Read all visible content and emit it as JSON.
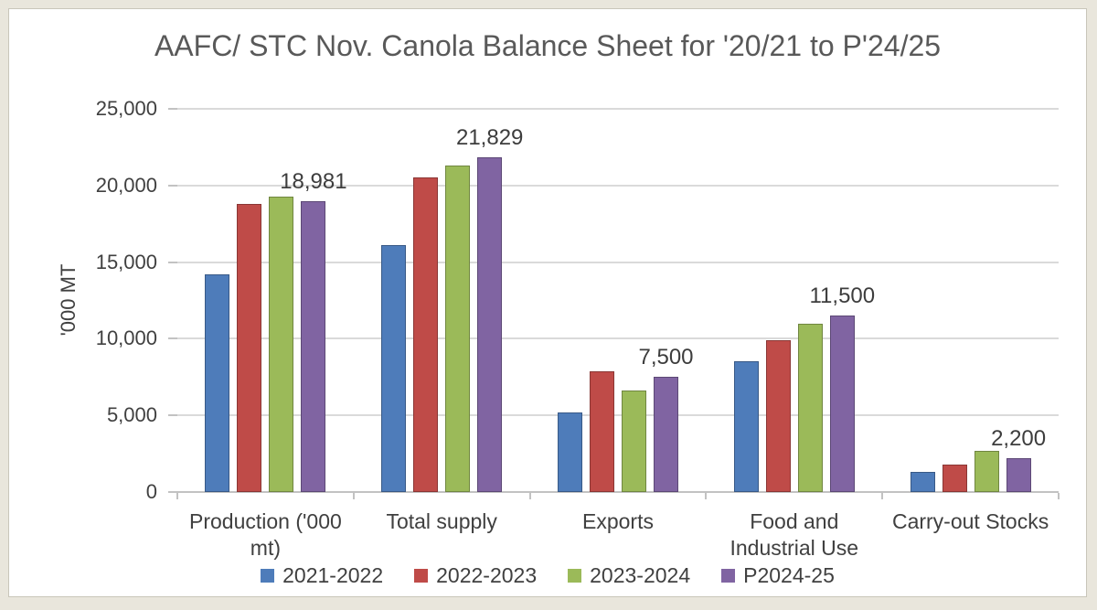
{
  "theme": {
    "frame": "#e9e6dc",
    "panel": "#ffffff",
    "title_text": "#595959",
    "axis_text": "#404040",
    "gridline": "#dadada",
    "axis_line": "#c2c2c2"
  },
  "chart_data": {
    "type": "bar",
    "title": "AAFC/ STC Nov. Canola Balance Sheet for '20/21 to P'24/25",
    "ylabel": "'000 MT",
    "xlabel": "",
    "ylim": [
      0,
      25000
    ],
    "grid": true,
    "legend_position": "bottom",
    "yticks": [
      {
        "value": 0,
        "label": "0"
      },
      {
        "value": 5000,
        "label": "5,000"
      },
      {
        "value": 10000,
        "label": "10,000"
      },
      {
        "value": 15000,
        "label": "15,000"
      },
      {
        "value": 20000,
        "label": "20,000"
      },
      {
        "value": 25000,
        "label": "25,000"
      }
    ],
    "categories": [
      {
        "label": "Production ('000 mt)",
        "label_lines": [
          "Production ('000",
          "mt)"
        ]
      },
      {
        "label": "Total supply",
        "label_lines": [
          "Total supply"
        ]
      },
      {
        "label": "Exports",
        "label_lines": [
          "Exports"
        ]
      },
      {
        "label": "Food and Industrial Use",
        "label_lines": [
          "Food and",
          "Industrial Use"
        ]
      },
      {
        "label": "Carry-out Stocks",
        "label_lines": [
          "Carry-out Stocks"
        ]
      }
    ],
    "series": [
      {
        "name": "2021-2022",
        "color": "#4e7cba",
        "values": [
          14200,
          16100,
          5200,
          8550,
          1300
        ]
      },
      {
        "name": "2022-2023",
        "color": "#bf4b48",
        "values": [
          18800,
          20500,
          7900,
          9900,
          1800
        ]
      },
      {
        "name": "2023-2024",
        "color": "#9bba59",
        "values": [
          19300,
          21300,
          6650,
          11000,
          2700
        ]
      },
      {
        "name": "P2024-25",
        "color": "#8064a2",
        "values": [
          18981,
          21829,
          7500,
          11500,
          2200
        ],
        "data_labels": [
          "18,981",
          "21,829",
          "7,500",
          "11,500",
          "2,200"
        ]
      }
    ]
  }
}
